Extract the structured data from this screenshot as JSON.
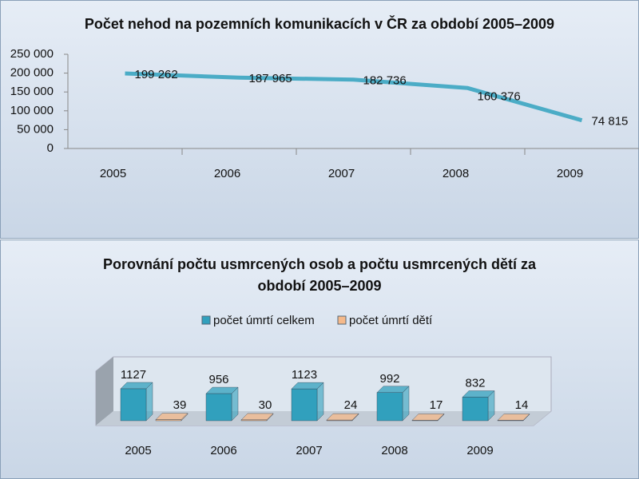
{
  "chart_data": [
    {
      "type": "line",
      "title": "Počet nehod na pozemních komunikacích v ČR za období 2005–2009",
      "categories": [
        "2005",
        "2006",
        "2007",
        "2008",
        "2009"
      ],
      "values": [
        199262,
        187965,
        182736,
        160376,
        74815
      ],
      "value_labels": [
        "199 262",
        "187 965",
        "182 736",
        "160 376",
        "74 815"
      ],
      "color": "#4bacc6",
      "ylim": [
        0,
        250000
      ],
      "yticks": [
        0,
        {
          "value": 50000,
          "label": "50 000"
        },
        {
          "value": 100000,
          "label": "100 000"
        },
        {
          "value": 150000,
          "label": "150 000"
        },
        {
          "value": 200000,
          "label": "200 000"
        },
        {
          "value": 250000,
          "label": "250 000"
        }
      ],
      "grid": false
    },
    {
      "type": "bar3d",
      "title": "Porovnání počtu usmrcených osob a počtu usmrcených dětí za období 2005–2009",
      "categories": [
        "2005",
        "2006",
        "2007",
        "2008",
        "2009"
      ],
      "series": [
        {
          "name": "počet úmrtí celkem",
          "color": "#31a0bd",
          "values": [
            1127,
            956,
            1123,
            992,
            832
          ]
        },
        {
          "name": "počet úmrtí dětí",
          "color": "#f5b98a",
          "values": [
            39,
            30,
            24,
            17,
            14
          ]
        }
      ]
    }
  ]
}
